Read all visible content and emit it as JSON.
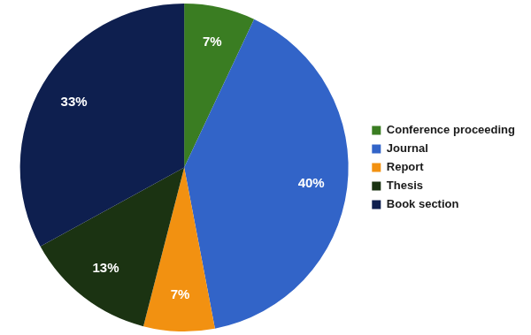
{
  "chart_data": {
    "type": "pie",
    "categories": [
      "Conference proceeding",
      "Journal",
      "Report",
      "Thesis",
      "Book section"
    ],
    "values": [
      7,
      40,
      7,
      13,
      33
    ],
    "value_labels": [
      "7%",
      "40%",
      "7%",
      "13%",
      "33%"
    ],
    "colors": [
      "#3a7d22",
      "#3264c8",
      "#f29111",
      "#1b3312",
      "#0e1f4f"
    ],
    "legend": "right",
    "data_labels": true
  }
}
